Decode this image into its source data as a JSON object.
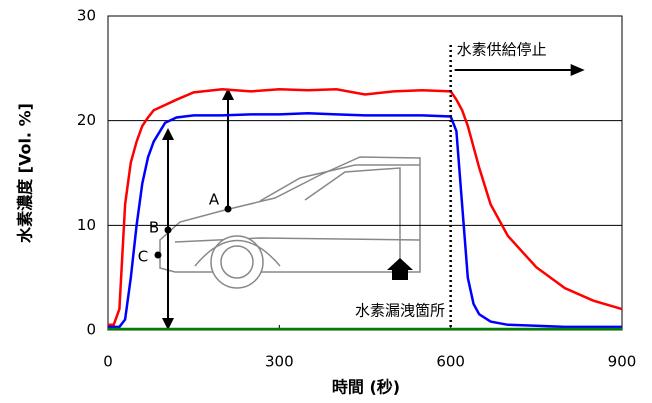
{
  "chart_data": {
    "type": "line",
    "x_label": "時間 (秒)",
    "y_label": "水素濃度 [Vol. %]",
    "x": [
      0,
      10,
      20,
      30,
      40,
      50,
      60,
      70,
      80,
      100,
      120,
      150,
      200,
      250,
      300,
      350,
      400,
      450,
      500,
      550,
      600,
      610,
      620,
      630,
      640,
      650,
      670,
      700,
      750,
      800,
      850,
      900
    ],
    "series": [
      {
        "name": "A",
        "color": "#ff0000",
        "values": [
          0.5,
          0.5,
          2,
          12,
          16,
          18,
          19.5,
          20.3,
          21,
          21.5,
          22,
          22.7,
          23,
          22.8,
          23,
          22.9,
          23,
          22.5,
          22.8,
          22.9,
          22.8,
          22,
          21,
          19.5,
          17.5,
          15.5,
          12,
          9,
          6,
          4,
          2.8,
          2
        ]
      },
      {
        "name": "B",
        "color": "#0000ff",
        "values": [
          0.3,
          0.3,
          0.3,
          1,
          5,
          10,
          14,
          16.5,
          18,
          19.8,
          20.3,
          20.5,
          20.5,
          20.6,
          20.6,
          20.7,
          20.6,
          20.5,
          20.5,
          20.5,
          20.4,
          19,
          12,
          5,
          2.5,
          1.5,
          0.8,
          0.5,
          0.4,
          0.3,
          0.3,
          0.3
        ]
      },
      {
        "name": "C",
        "color": "#008000",
        "values": [
          0.1,
          0.1,
          0.1,
          0.1,
          0.1,
          0.1,
          0.1,
          0.1,
          0.1,
          0.1,
          0.1,
          0.1,
          0.1,
          0.1,
          0.1,
          0.1,
          0.1,
          0.1,
          0.1,
          0.1,
          0.1,
          0.1,
          0.1,
          0.1,
          0.1,
          0.1,
          0.1,
          0.1,
          0.1,
          0.1,
          0.1,
          0.1
        ]
      }
    ],
    "xlim": [
      0,
      900
    ],
    "ylim": [
      0,
      30
    ],
    "xticks": [
      0,
      300,
      600,
      900
    ],
    "yticks": [
      0,
      10,
      20,
      30
    ],
    "grid": true,
    "stop_annotation": {
      "text": "水素供給停止",
      "x": 600
    },
    "leak_annotation": "水素漏洩箇所"
  }
}
